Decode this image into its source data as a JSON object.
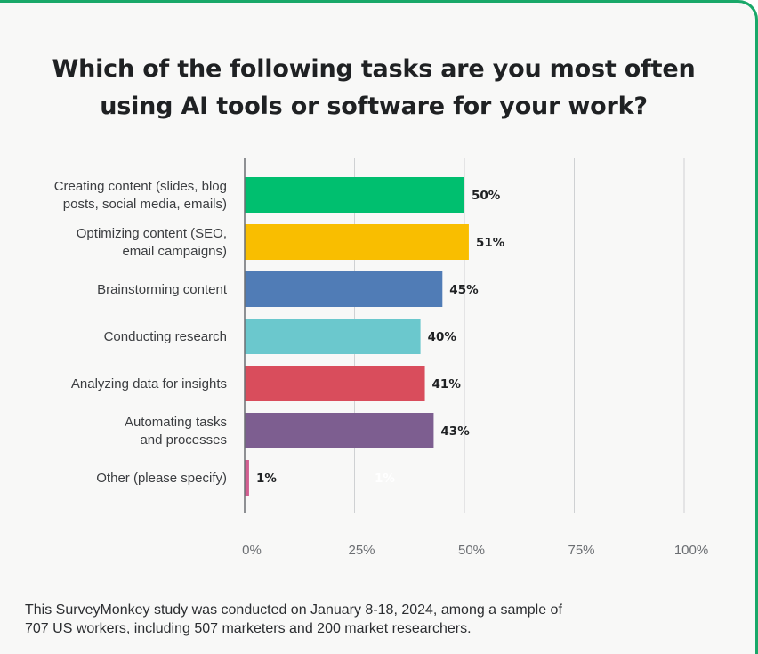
{
  "chart_data": {
    "type": "bar",
    "orientation": "horizontal",
    "title": "Which of the following tasks are you most often using AI tools or software for your work?",
    "categories": [
      [
        "Creating content (slides, blog",
        "posts, social media, emails)"
      ],
      [
        "Optimizing content (SEO,",
        "email campaigns)"
      ],
      [
        "Brainstorming content"
      ],
      [
        "Conducting research"
      ],
      [
        "Analyzing data for insights"
      ],
      [
        "Automating tasks",
        "and processes"
      ],
      [
        "Other (please specify)"
      ]
    ],
    "values": [
      50,
      51,
      45,
      40,
      41,
      43,
      1
    ],
    "value_labels": [
      "50%",
      "51%",
      "45%",
      "40%",
      "41%",
      "43%",
      "1%"
    ],
    "colors": [
      "#00bf6f",
      "#f9be00",
      "#507cb6",
      "#6bc8cd",
      "#d94d5c",
      "#7d5e90",
      "#d25f90"
    ],
    "xlim": [
      0,
      100
    ],
    "xticks": [
      0,
      25,
      50,
      75,
      100
    ],
    "xtick_labels": [
      "0%",
      "25%",
      "50%",
      "75%",
      "100%"
    ],
    "grid": true,
    "ghost_label": "1%"
  },
  "footnote": {
    "line1": "This SurveyMonkey study was conducted on January 8-18, 2024, among a sample of",
    "line2": "707 US workers, including 507 marketers and 200 market researchers."
  }
}
